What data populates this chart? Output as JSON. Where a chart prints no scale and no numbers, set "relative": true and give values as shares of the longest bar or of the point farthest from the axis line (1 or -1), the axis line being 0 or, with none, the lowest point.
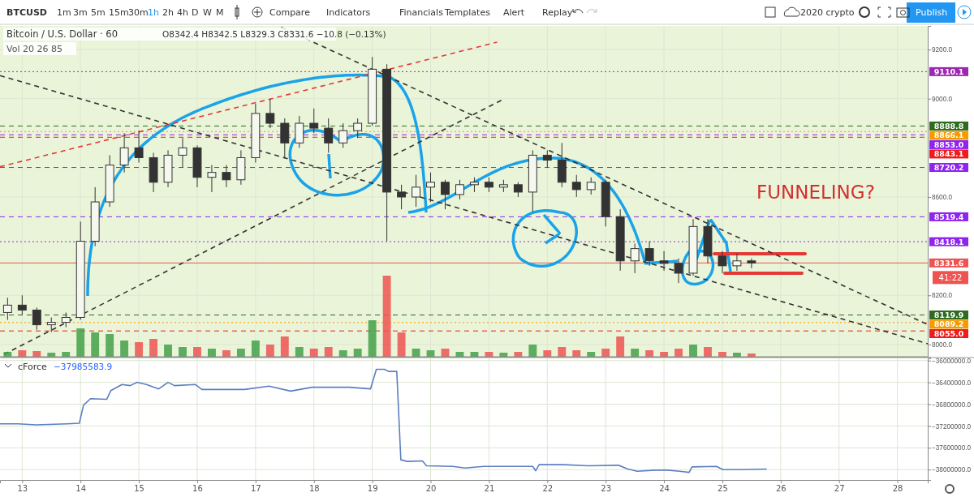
{
  "chart_data": [
    {
      "type": "candlestick",
      "title": "Bitcoin / U.S. Dollar · 60",
      "subtitle": "O8342.4 H8342.5 L8329.3 C8331.6 −10.8 (−0.13%)",
      "x": [
        12.75,
        13.0,
        13.25,
        13.5,
        13.75,
        14.0,
        14.25,
        14.5,
        14.75,
        15.0,
        15.25,
        15.5,
        15.75,
        16.0,
        16.25,
        16.5,
        16.75,
        17.0,
        17.25,
        17.5,
        17.75,
        18.0,
        18.25,
        18.5,
        18.75,
        19.0,
        19.25,
        19.5,
        19.75,
        20.0,
        20.25,
        20.5,
        20.75,
        21.0,
        21.25,
        21.5,
        21.75,
        22.0,
        22.25,
        22.5,
        22.75,
        23.0,
        23.25,
        23.5,
        23.75,
        24.0,
        24.25,
        24.5,
        24.75,
        25.0,
        25.25,
        25.5
      ],
      "ohlc": [
        [
          8130,
          8190,
          8100,
          8160
        ],
        [
          8160,
          8200,
          8120,
          8140
        ],
        [
          8140,
          8150,
          8060,
          8080
        ],
        [
          8080,
          8110,
          8050,
          8090
        ],
        [
          8090,
          8130,
          8070,
          8110
        ],
        [
          8110,
          8500,
          8100,
          8420
        ],
        [
          8420,
          8640,
          8400,
          8580
        ],
        [
          8580,
          8770,
          8560,
          8730
        ],
        [
          8730,
          8860,
          8700,
          8800
        ],
        [
          8800,
          8870,
          8740,
          8760
        ],
        [
          8760,
          8780,
          8620,
          8660
        ],
        [
          8660,
          8790,
          8640,
          8770
        ],
        [
          8770,
          8840,
          8720,
          8800
        ],
        [
          8800,
          8810,
          8640,
          8680
        ],
        [
          8680,
          8730,
          8620,
          8700
        ],
        [
          8700,
          8730,
          8640,
          8670
        ],
        [
          8670,
          8790,
          8650,
          8760
        ],
        [
          8760,
          8980,
          8740,
          8940
        ],
        [
          8940,
          9000,
          8880,
          8900
        ],
        [
          8900,
          8920,
          8760,
          8820
        ],
        [
          8820,
          8930,
          8800,
          8900
        ],
        [
          8900,
          8960,
          8860,
          8880
        ],
        [
          8880,
          8920,
          8780,
          8820
        ],
        [
          8820,
          8900,
          8800,
          8870
        ],
        [
          8870,
          8920,
          8840,
          8900
        ],
        [
          8900,
          9170,
          8890,
          9120
        ],
        [
          9120,
          9140,
          8420,
          8620
        ],
        [
          8620,
          8650,
          8550,
          8600
        ],
        [
          8600,
          8690,
          8560,
          8640
        ],
        [
          8640,
          8700,
          8580,
          8660
        ],
        [
          8660,
          8670,
          8550,
          8610
        ],
        [
          8610,
          8670,
          8590,
          8650
        ],
        [
          8650,
          8680,
          8620,
          8660
        ],
        [
          8660,
          8680,
          8620,
          8640
        ],
        [
          8640,
          8670,
          8620,
          8650
        ],
        [
          8650,
          8660,
          8600,
          8620
        ],
        [
          8620,
          8790,
          8540,
          8770
        ],
        [
          8770,
          8790,
          8720,
          8750
        ],
        [
          8750,
          8820,
          8640,
          8660
        ],
        [
          8660,
          8690,
          8600,
          8630
        ],
        [
          8630,
          8680,
          8610,
          8660
        ],
        [
          8660,
          8670,
          8480,
          8520
        ],
        [
          8520,
          8550,
          8300,
          8340
        ],
        [
          8340,
          8410,
          8290,
          8390
        ],
        [
          8390,
          8420,
          8320,
          8340
        ],
        [
          8340,
          8380,
          8300,
          8330
        ],
        [
          8330,
          8350,
          8250,
          8290
        ],
        [
          8290,
          8510,
          8280,
          8480
        ],
        [
          8480,
          8510,
          8330,
          8360
        ],
        [
          8360,
          8380,
          8290,
          8320
        ],
        [
          8320,
          8370,
          8300,
          8340
        ],
        [
          8340,
          8350,
          8310,
          8331.6
        ]
      ],
      "series": [
        {
          "type": "line",
          "color": "#e53935",
          "line_style": "dashed",
          "x": [
            12.62,
            21.14
          ],
          "values": [
            8723,
            9230
          ]
        },
        {
          "type": "line",
          "color": "#333333",
          "line_style": "dashed",
          "x": [
            12.69,
            21.25
          ],
          "values": [
            7960,
            8998
          ]
        },
        {
          "type": "line",
          "color": "#333333",
          "line_style": "dashed",
          "x": [
            17.44,
            28.52
          ],
          "values": [
            9290,
            8081
          ]
        },
        {
          "type": "line",
          "color": "#333333",
          "line_style": "dashed",
          "x": [
            12.62,
            28.52
          ],
          "values": [
            9094,
            8003
          ]
        }
      ],
      "xlim": [
        12.62,
        28.52
      ],
      "xticks": [
        13,
        14,
        15,
        16,
        17,
        18,
        19,
        20,
        21,
        22,
        23,
        24,
        25,
        26,
        27,
        28
      ],
      "ylim": [
        7950,
        9296
      ],
      "yticks": [
        {
          "value": 8000,
          "label": "8000.0"
        },
        {
          "value": 8200,
          "label": "8200.0"
        },
        {
          "value": 8600,
          "label": "8600.0"
        },
        {
          "value": 9000,
          "label": "9000.0"
        },
        {
          "value": 9200,
          "label": "9200.0"
        }
      ],
      "tick_labels": "y",
      "grid": true,
      "ref_lines": [
        {
          "axis": "y",
          "value": 9110.1,
          "label": "9110.1",
          "color": "#9c27b0",
          "line_style": "dotted"
        },
        {
          "axis": "y",
          "value": 8888.8,
          "label": "8888.8",
          "color": "#2e6b1f",
          "line_style": "dashed"
        },
        {
          "axis": "y",
          "value": 8866.1,
          "label": "8866.1",
          "color": "#f59b00",
          "line_style": "dotted"
        },
        {
          "axis": "y",
          "value": 8853.0,
          "label": "8853.0",
          "color": "#8e24f0",
          "line_style": "dashed"
        },
        {
          "axis": "y",
          "value": 8843.1,
          "label": "8843.1",
          "color": "#ee1c1c",
          "line_style": "dashed"
        },
        {
          "axis": "y",
          "value": 8720.2,
          "label": "8720.2",
          "color": "#8e24f0",
          "line_style": "dashed"
        },
        {
          "axis": "y",
          "value": 8519.4,
          "label": "8519.4",
          "color": "#8e24f0",
          "line_style": "dashed"
        },
        {
          "axis": "y",
          "value": 8418.1,
          "label": "8418.1",
          "color": "#8e24f0",
          "line_style": "dotted"
        },
        {
          "axis": "y",
          "value": 8331.6,
          "label": "8331.6",
          "color": "#ef5350",
          "line_style": "solid"
        },
        {
          "axis": "y",
          "value": 8119.9,
          "label": "8119.9",
          "color": "#2e6b1f",
          "line_style": "dashed"
        },
        {
          "axis": "y",
          "value": 8089.2,
          "label": "8089.2",
          "color": "#f59b00",
          "line_style": "dotted"
        },
        {
          "axis": "y",
          "value": 8055.0,
          "label": "8055.0",
          "color": "#ee1c1c",
          "line_style": "dashed"
        }
      ],
      "annotations": [
        "FUNNELING?",
        "41:22"
      ]
    },
    {
      "type": "bar",
      "title": "Vol 20 26 85",
      "relative": true,
      "tick_labels": false,
      "x": [
        12.75,
        13.0,
        13.25,
        13.5,
        13.75,
        14.0,
        14.25,
        14.5,
        14.75,
        15.0,
        15.25,
        15.5,
        15.75,
        16.0,
        16.25,
        16.5,
        16.75,
        17.0,
        17.25,
        17.5,
        17.75,
        18.0,
        18.25,
        18.5,
        18.75,
        19.0,
        19.25,
        19.5,
        19.75,
        20.0,
        20.25,
        20.5,
        20.75,
        21.0,
        21.25,
        21.5,
        21.75,
        22.0,
        22.25,
        22.5,
        22.75,
        23.0,
        23.25,
        23.5,
        23.75,
        24.0,
        24.25,
        24.5,
        24.75,
        25.0,
        25.25,
        25.5
      ],
      "values": [
        0.06,
        0.08,
        0.07,
        0.05,
        0.06,
        0.35,
        0.3,
        0.28,
        0.2,
        0.18,
        0.22,
        0.15,
        0.12,
        0.12,
        0.1,
        0.08,
        0.1,
        0.2,
        0.15,
        0.25,
        0.12,
        0.1,
        0.12,
        0.08,
        0.1,
        0.45,
        1.0,
        0.3,
        0.1,
        0.08,
        0.1,
        0.06,
        0.06,
        0.06,
        0.05,
        0.06,
        0.15,
        0.08,
        0.12,
        0.08,
        0.06,
        0.1,
        0.25,
        0.1,
        0.08,
        0.06,
        0.1,
        0.15,
        0.12,
        0.06,
        0.05,
        0.04
      ],
      "colors": [
        "#43a047",
        "#ef5350",
        "#ef5350",
        "#43a047",
        "#43a047",
        "#43a047",
        "#43a047",
        "#43a047",
        "#43a047",
        "#ef5350",
        "#ef5350",
        "#43a047",
        "#43a047",
        "#ef5350",
        "#43a047",
        "#ef5350",
        "#43a047",
        "#43a047",
        "#ef5350",
        "#ef5350",
        "#43a047",
        "#ef5350",
        "#ef5350",
        "#43a047",
        "#43a047",
        "#43a047",
        "#ef5350",
        "#ef5350",
        "#43a047",
        "#43a047",
        "#ef5350",
        "#43a047",
        "#43a047",
        "#ef5350",
        "#43a047",
        "#ef5350",
        "#43a047",
        "#ef5350",
        "#ef5350",
        "#ef5350",
        "#43a047",
        "#ef5350",
        "#ef5350",
        "#43a047",
        "#ef5350",
        "#ef5350",
        "#ef5350",
        "#43a047",
        "#ef5350",
        "#ef5350",
        "#43a047",
        "#ef5350"
      ]
    },
    {
      "type": "line",
      "title": "cForce",
      "subtitle": "−37985583.9",
      "series": [
        {
          "color": "#5b7ec2",
          "x": [
            12.62,
            12.93,
            13.24,
            13.77,
            13.98,
            14.05,
            14.17,
            14.45,
            14.52,
            14.71,
            14.85,
            14.97,
            15.13,
            15.34,
            15.5,
            15.61,
            15.97,
            16.08,
            16.81,
            17.23,
            17.6,
            17.97,
            18.6,
            18.97,
            19.07,
            19.21,
            19.28,
            19.42,
            19.49,
            19.6,
            19.86,
            19.93,
            20.38,
            20.59,
            20.91,
            21.75,
            21.8,
            21.86,
            22.28,
            22.7,
            23.22,
            23.38,
            23.54,
            23.85,
            24.06,
            24.27,
            24.43,
            24.48,
            24.9,
            25.01,
            25.33,
            25.76
          ],
          "values": [
            -37160000,
            -37160000,
            -37180000,
            -37160000,
            -37150000,
            -36820000,
            -36700000,
            -36710000,
            -36550000,
            -36440000,
            -36460000,
            -36400000,
            -36440000,
            -36520000,
            -36400000,
            -36460000,
            -36440000,
            -36530000,
            -36530000,
            -36470000,
            -36560000,
            -36490000,
            -36490000,
            -36520000,
            -36160000,
            -36160000,
            -36200000,
            -36200000,
            -37820000,
            -37850000,
            -37840000,
            -37930000,
            -37940000,
            -37970000,
            -37940000,
            -37940000,
            -38020000,
            -37910000,
            -37910000,
            -37930000,
            -37920000,
            -37990000,
            -38030000,
            -38010000,
            -38010000,
            -38030000,
            -38050000,
            -37950000,
            -37940000,
            -38000000,
            -38000000,
            -37990000
          ]
        }
      ],
      "xlim": [
        12.62,
        28.52
      ],
      "xticks": [
        13,
        14,
        15,
        16,
        17,
        18,
        19,
        20,
        21,
        22,
        23,
        24,
        25,
        26,
        27,
        28
      ],
      "ylim": [
        -38190000,
        -35960000
      ],
      "yticks": [
        {
          "value": -36000000,
          "label": "−36000000.0"
        },
        {
          "value": -36400000,
          "label": "−36400000.0"
        },
        {
          "value": -36800000,
          "label": "−36800000.0"
        },
        {
          "value": -37200000,
          "label": "−37200000.0"
        },
        {
          "value": -37600000,
          "label": "−37600000.0"
        },
        {
          "value": -38000000,
          "label": "−38000000.0"
        }
      ],
      "grid": true,
      "marker": "none",
      "line_style": "solid"
    },
    {
      "type": "other",
      "annotations": [
        "BTCUSD",
        "1m",
        "3m",
        "5m",
        "15m",
        "30m",
        "1h",
        "2h",
        "4h",
        "D",
        "W",
        "M",
        "Compare",
        "Indicators",
        "Financials",
        "Templates",
        "Alert",
        "Replay",
        "2020 crypto",
        "Publish"
      ]
    }
  ]
}
